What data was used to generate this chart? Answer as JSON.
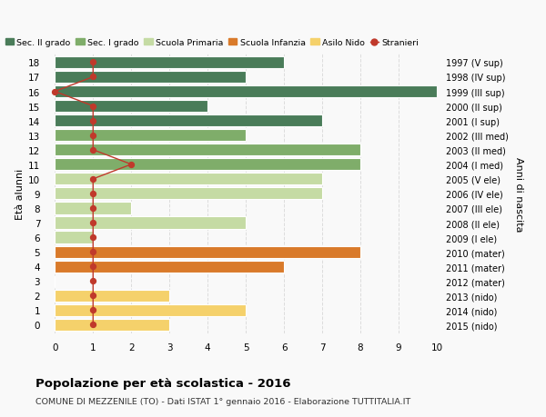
{
  "ages": [
    18,
    17,
    16,
    15,
    14,
    13,
    12,
    11,
    10,
    9,
    8,
    7,
    6,
    5,
    4,
    3,
    2,
    1,
    0
  ],
  "right_labels": [
    "1997 (V sup)",
    "1998 (IV sup)",
    "1999 (III sup)",
    "2000 (II sup)",
    "2001 (I sup)",
    "2002 (III med)",
    "2003 (II med)",
    "2004 (I med)",
    "2005 (V ele)",
    "2006 (IV ele)",
    "2007 (III ele)",
    "2008 (II ele)",
    "2009 (I ele)",
    "2010 (mater)",
    "2011 (mater)",
    "2012 (mater)",
    "2013 (nido)",
    "2014 (nido)",
    "2015 (nido)"
  ],
  "bar_values": [
    6,
    5,
    10,
    4,
    7,
    5,
    8,
    8,
    7,
    7,
    2,
    5,
    1,
    8,
    6,
    0,
    3,
    5,
    3
  ],
  "bar_colors": [
    "#4a7c59",
    "#4a7c59",
    "#4a7c59",
    "#4a7c59",
    "#4a7c59",
    "#7fad6a",
    "#7fad6a",
    "#7fad6a",
    "#c5dba4",
    "#c5dba4",
    "#c5dba4",
    "#c5dba4",
    "#c5dba4",
    "#d97a2a",
    "#d97a2a",
    "#d97a2a",
    "#f5d16b",
    "#f5d16b",
    "#f5d16b"
  ],
  "stranieri_values": [
    1,
    1,
    0,
    1,
    1,
    1,
    1,
    2,
    1,
    1,
    1,
    1,
    1,
    1,
    1,
    1,
    1,
    1,
    1
  ],
  "stranieri_color": "#c0392b",
  "legend_labels": [
    "Sec. II grado",
    "Sec. I grado",
    "Scuola Primaria",
    "Scuola Infanzia",
    "Asilo Nido",
    "Stranieri"
  ],
  "legend_colors": [
    "#4a7c59",
    "#7fad6a",
    "#c5dba4",
    "#d97a2a",
    "#f5d16b",
    "#c0392b"
  ],
  "ylabel_left": "Età alunni",
  "ylabel_right": "Anni di nascita",
  "xlim_min": -0.15,
  "xlim_max": 10,
  "xticks": [
    0,
    1,
    2,
    3,
    4,
    5,
    6,
    7,
    8,
    9,
    10
  ],
  "title": "Popolazione per età scolastica - 2016",
  "subtitle": "COMUNE DI MEZZENILE (TO) - Dati ISTAT 1° gennaio 2016 - Elaborazione TUTTITALIA.IT",
  "background_color": "#f9f9f9",
  "grid_color": "#dddddd",
  "bar_height": 0.82
}
